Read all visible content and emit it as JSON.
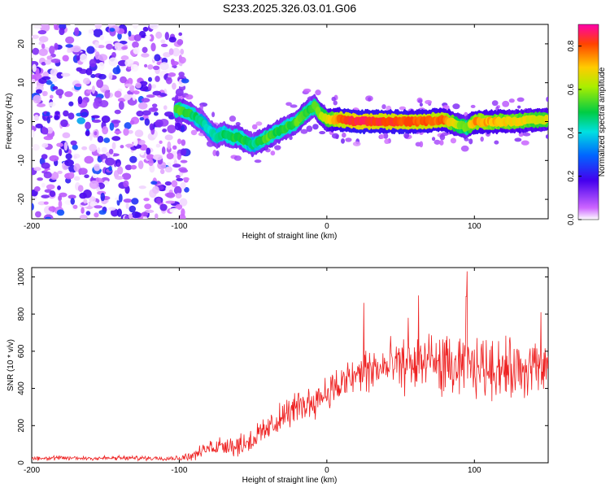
{
  "title": "S233.2025.326.03.01.G06",
  "colors": {
    "snr_line": "#ee2222",
    "axis": "#000000"
  },
  "chart_data": [
    {
      "type": "heatmap",
      "xlabel": "Height of straight line (km)",
      "ylabel": "Frequency (Hz)",
      "xlim": [
        -200,
        150
      ],
      "ylim": [
        -25,
        25
      ],
      "xticks": [
        "-200",
        "-100",
        "0",
        "100"
      ],
      "xtick_values": [
        -200,
        -100,
        0,
        100
      ],
      "yticks": [
        "20",
        "10",
        "0",
        "-10",
        "-20"
      ],
      "ytick_values": [
        20,
        10,
        0,
        -10,
        -20
      ],
      "colorbar": {
        "label": "Normalized spectral amplitude",
        "ticks": [
          "0.0",
          "0.2",
          "0.4",
          "0.6",
          "0.8"
        ],
        "tick_values": [
          0.0,
          0.2,
          0.4,
          0.6,
          0.8
        ],
        "range": [
          0,
          0.9
        ]
      },
      "ridge": {
        "x": [
          -100,
          -92,
          -85,
          -80,
          -75,
          -70,
          -65,
          -60,
          -55,
          -50,
          -45,
          -40,
          -35,
          -30,
          -25,
          -20,
          -15,
          -12,
          -8,
          -5,
          0,
          10,
          20,
          40,
          60,
          80,
          90,
          95,
          100,
          120,
          150
        ],
        "freq": [
          3,
          2,
          0,
          -2,
          -4,
          -3,
          -4,
          -4,
          -5,
          -6,
          -5,
          -4,
          -3,
          -2,
          -1,
          0,
          2,
          3,
          4,
          2,
          0.5,
          0.5,
          0,
          0,
          0,
          0.5,
          -1,
          -1.5,
          0,
          0,
          0.5
        ],
        "amplitude": [
          0.55,
          0.5,
          0.45,
          0.42,
          0.45,
          0.48,
          0.5,
          0.5,
          0.5,
          0.45,
          0.5,
          0.55,
          0.5,
          0.5,
          0.52,
          0.55,
          0.55,
          0.5,
          0.55,
          0.6,
          0.65,
          0.8,
          0.85,
          0.82,
          0.8,
          0.78,
          0.6,
          0.55,
          0.75,
          0.7,
          0.65
        ]
      }
    },
    {
      "type": "line",
      "xlabel": "Height of straight line (km)",
      "ylabel": "SNR (10 * v/v)",
      "xlim": [
        -200,
        150
      ],
      "ylim": [
        0,
        1050
      ],
      "xticks": [
        "-200",
        "-100",
        "0",
        "100"
      ],
      "xtick_values": [
        -200,
        -100,
        0,
        100
      ],
      "yticks": [
        "0",
        "200",
        "400",
        "600",
        "800",
        "1000"
      ],
      "ytick_values": [
        0,
        200,
        400,
        600,
        800,
        1000
      ],
      "trend": {
        "x": [
          -200,
          -100,
          -90,
          -80,
          -70,
          -60,
          -50,
          -40,
          -30,
          -20,
          -10,
          0,
          10,
          20,
          30,
          50,
          70,
          90,
          110,
          130,
          150
        ],
        "snr": [
          25,
          25,
          40,
          80,
          100,
          90,
          130,
          180,
          250,
          300,
          330,
          380,
          420,
          470,
          500,
          520,
          540,
          500,
          520,
          500,
          510
        ]
      },
      "noise": {
        "x": [
          -200,
          -100,
          -80,
          -60,
          -40,
          -20,
          0,
          20,
          40,
          60,
          80,
          100,
          150
        ],
        "spread": [
          12,
          12,
          40,
          60,
          70,
          80,
          90,
          110,
          130,
          140,
          150,
          150,
          150
        ]
      },
      "peaks": [
        {
          "x": 95,
          "snr": 1030
        },
        {
          "x": 62,
          "snr": 900
        },
        {
          "x": 94.5,
          "snr": 895
        },
        {
          "x": 25,
          "snr": 860
        },
        {
          "x": 145,
          "snr": 810
        },
        {
          "x": 55,
          "snr": 780
        }
      ]
    }
  ]
}
